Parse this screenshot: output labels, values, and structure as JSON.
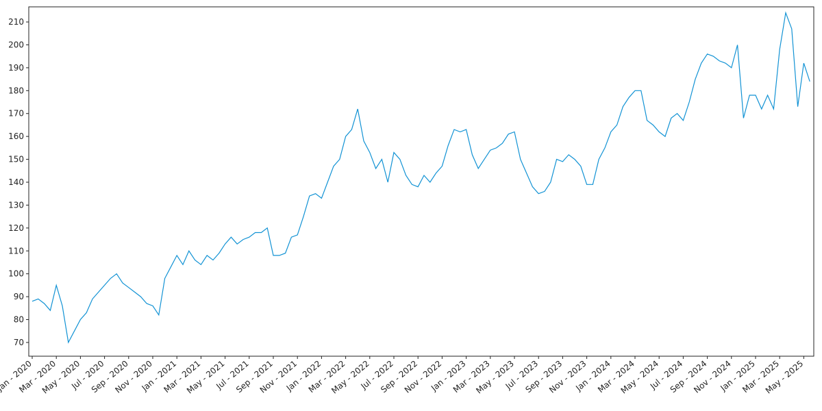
{
  "chart_data": {
    "type": "line",
    "categories": [
      "Jan - 2020",
      null,
      null,
      null,
      "Mar - 2020",
      null,
      null,
      null,
      "May - 2020",
      null,
      null,
      null,
      "Jul - 2020",
      null,
      null,
      null,
      "Sep - 2020",
      null,
      null,
      null,
      "Nov - 2020",
      null,
      null,
      null,
      "Jan - 2021",
      null,
      null,
      null,
      "Mar - 2021",
      null,
      null,
      null,
      "May - 2021",
      null,
      null,
      null,
      "Jul - 2021",
      null,
      null,
      null,
      "Sep - 2021",
      null,
      null,
      null,
      "Nov - 2021",
      null,
      null,
      null,
      "Jan - 2022",
      null,
      null,
      null,
      "Mar - 2022",
      null,
      null,
      null,
      "May - 2022",
      null,
      null,
      null,
      "Jul - 2022",
      null,
      null,
      null,
      "Sep - 2022",
      null,
      null,
      null,
      "Nov - 2022",
      null,
      null,
      null,
      "Jan - 2023",
      null,
      null,
      null,
      "Mar - 2023",
      null,
      null,
      null,
      "May - 2023",
      null,
      null,
      null,
      "Jul - 2023",
      null,
      null,
      null,
      "Sep - 2023",
      null,
      null,
      null,
      "Nov - 2023",
      null,
      null,
      null,
      "Jan - 2024",
      null,
      null,
      null,
      "Mar - 2024",
      null,
      null,
      null,
      "May - 2024",
      null,
      null,
      null,
      "Jul - 2024",
      null,
      null,
      null,
      "Sep - 2024",
      null,
      null,
      null,
      "Nov - 2024",
      null,
      null,
      null,
      "Jan - 2025",
      null,
      null,
      null,
      "Mar - 2025",
      null,
      null,
      null,
      "May - 2025",
      null
    ],
    "values": [
      88,
      89,
      87,
      84,
      95,
      86,
      70,
      75,
      80,
      83,
      89,
      92,
      95,
      98,
      100,
      96,
      94,
      92,
      90,
      87,
      86,
      82,
      98,
      103,
      108,
      104,
      110,
      106,
      104,
      108,
      106,
      109,
      113,
      116,
      113,
      115,
      116,
      118,
      118,
      120,
      108,
      108,
      109,
      116,
      117,
      125,
      134,
      135,
      133,
      140,
      147,
      150,
      160,
      163,
      172,
      158,
      153,
      146,
      150,
      140,
      153,
      150,
      143,
      139,
      138,
      143,
      140,
      144,
      147,
      156,
      163,
      162,
      163,
      152,
      146,
      150,
      154,
      155,
      157,
      161,
      162,
      150,
      144,
      138,
      135,
      136,
      140,
      150,
      149,
      152,
      150,
      147,
      139,
      139,
      150,
      155,
      162,
      165,
      173,
      177,
      180,
      180,
      167,
      165,
      162,
      160,
      168,
      170,
      167,
      175,
      185,
      192,
      196,
      195,
      193,
      192,
      190,
      200,
      168,
      178,
      178,
      172,
      178,
      172,
      198,
      214,
      207,
      173,
      192,
      184
    ],
    "color": "#1192d4",
    "ylim": [
      64,
      216.6
    ],
    "yticks": [
      70,
      80,
      90,
      100,
      110,
      120,
      130,
      140,
      150,
      160,
      170,
      180,
      190,
      200,
      210
    ]
  }
}
